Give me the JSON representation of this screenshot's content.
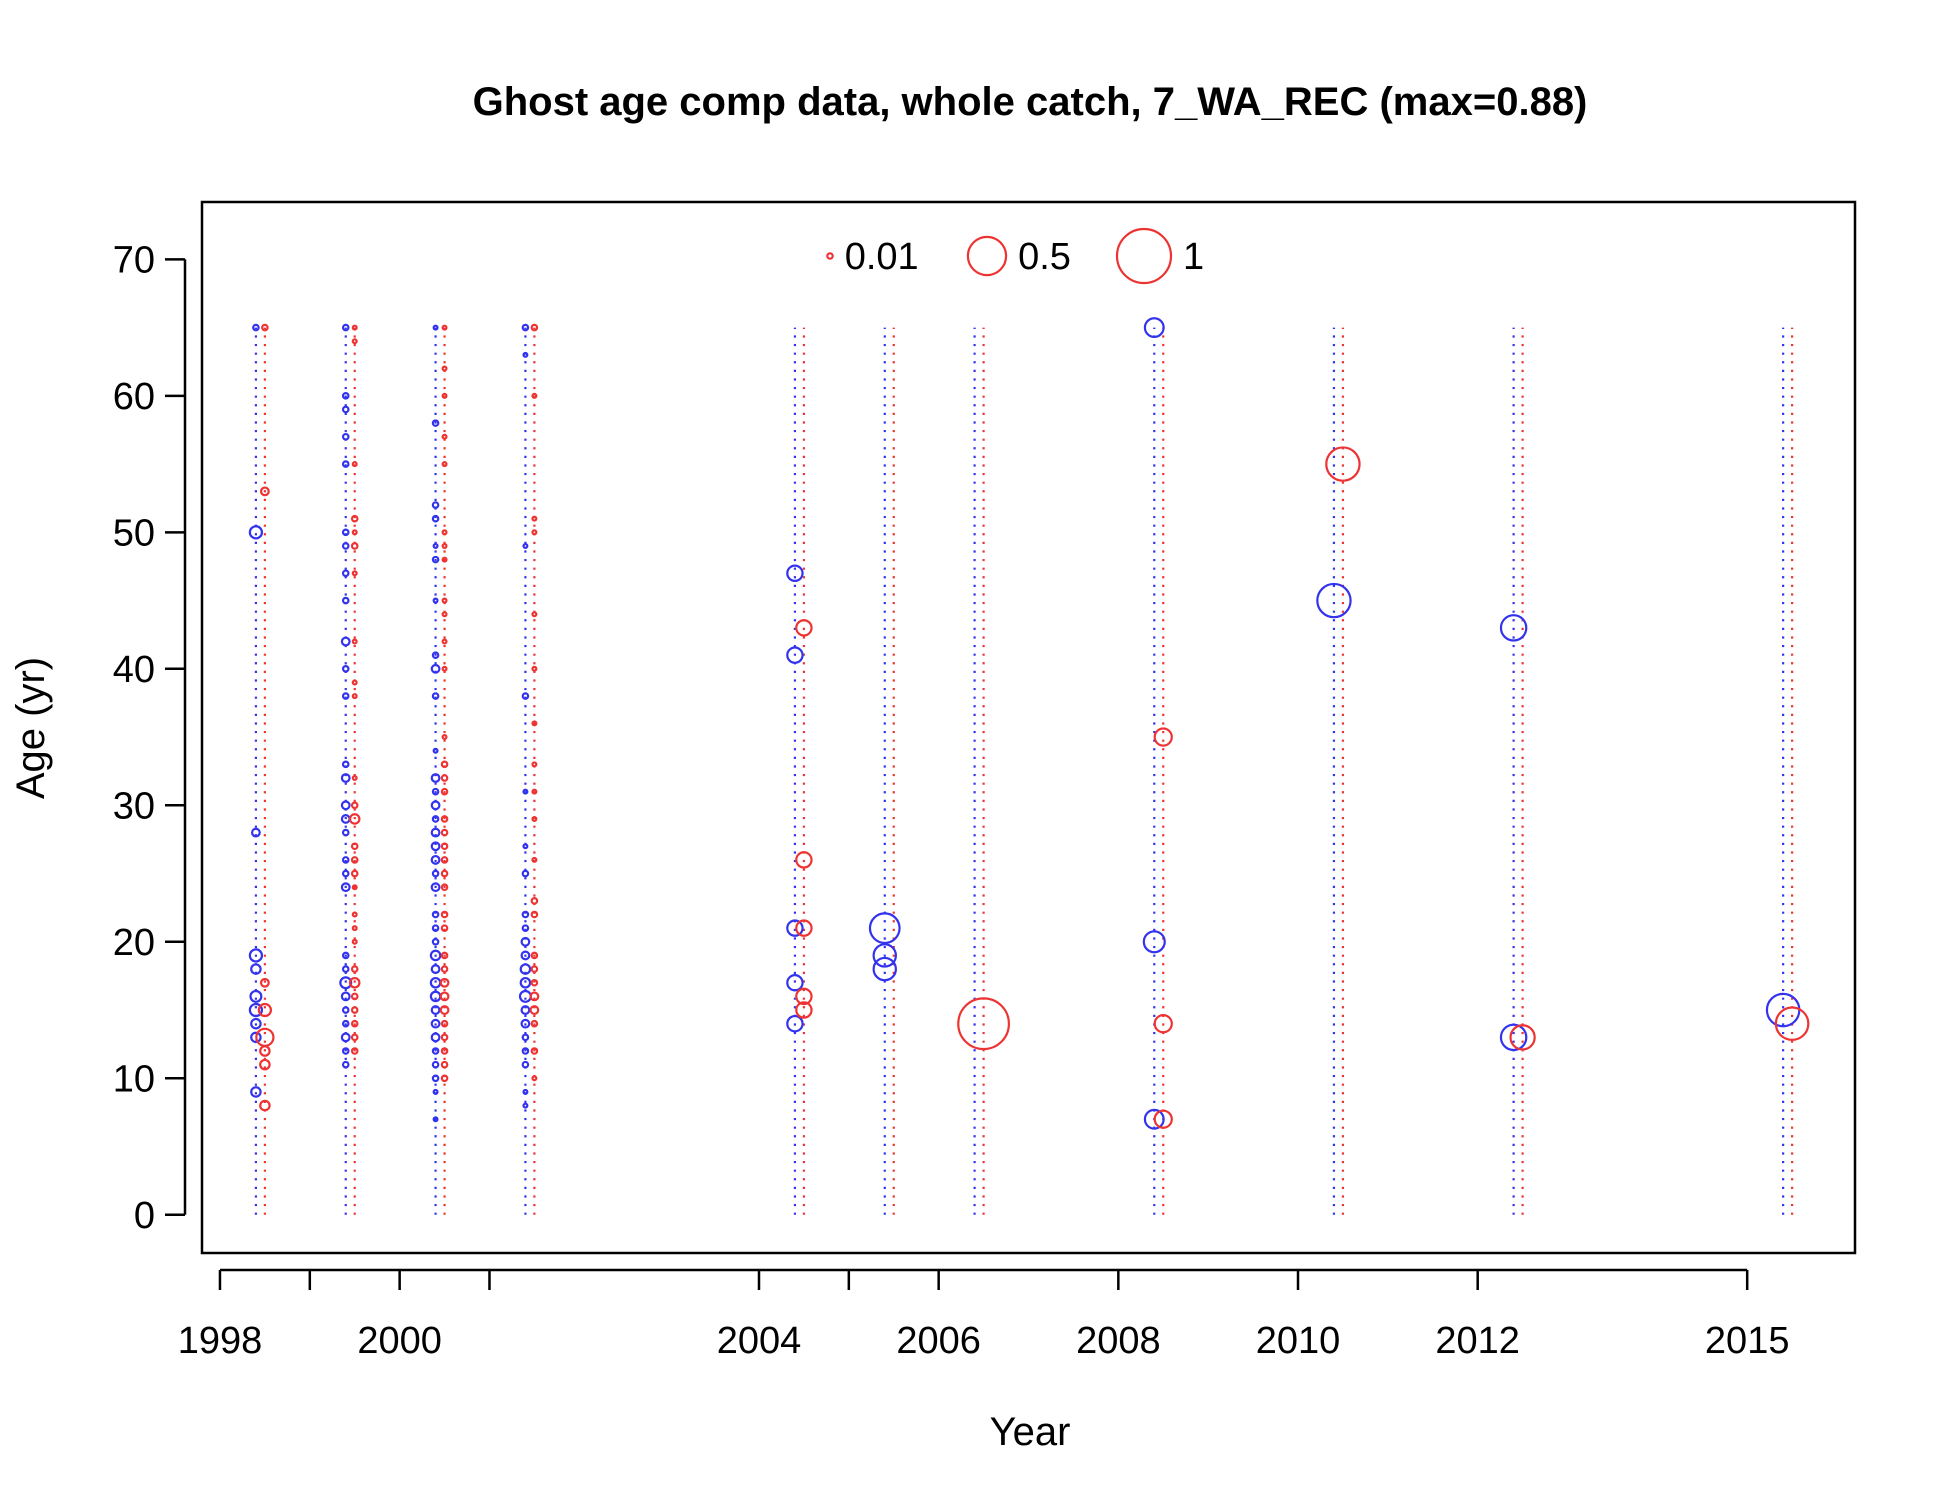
{
  "chart_data": {
    "type": "scatter",
    "title": "Ghost age comp data, whole catch, 7_WA_REC (max=0.88)",
    "xlabel": "Year",
    "ylabel": "Age (yr)",
    "xlim": [
      1997.8,
      2016.2
    ],
    "ylim": [
      -2.8,
      74.2
    ],
    "x_ticks": [
      1998,
      1999,
      2000,
      2001,
      2004,
      2005,
      2006,
      2008,
      2010,
      2012,
      2015
    ],
    "x_tick_labels": [
      "1998",
      "",
      "2000",
      "",
      "2004",
      "",
      "2006",
      "2008",
      "2010",
      "2012",
      "2015"
    ],
    "y_ticks": [
      0,
      10,
      20,
      30,
      40,
      50,
      60,
      70
    ],
    "y_tick_labels": [
      "0",
      "10",
      "20",
      "30",
      "40",
      "50",
      "60",
      "70"
    ],
    "grid": false,
    "legend_position": "top-center",
    "legend": [
      {
        "label": "0.01",
        "value": 0.01
      },
      {
        "label": "0.5",
        "value": 0.5
      },
      {
        "label": "1",
        "value": 1
      }
    ],
    "colors": {
      "female": "#3333ee",
      "male": "#ee3333"
    },
    "years": [
      1998.45,
      1999.45,
      2000.45,
      2001.45,
      2004.45,
      2005.45,
      2006.45,
      2008.45,
      2010.45,
      2012.45,
      2015.45
    ],
    "age_range": [
      0,
      65
    ],
    "series": [
      {
        "color": "#3333ee",
        "offset": -0.05,
        "points": [
          [
            1998.45,
            65,
            0.01
          ],
          [
            1998.45,
            50,
            0.05
          ],
          [
            1998.45,
            28,
            0.02
          ],
          [
            1998.45,
            19,
            0.05
          ],
          [
            1998.45,
            18,
            0.03
          ],
          [
            1998.45,
            16,
            0.04
          ],
          [
            1998.45,
            15,
            0.05
          ],
          [
            1998.45,
            14,
            0.03
          ],
          [
            1998.45,
            13,
            0.03
          ],
          [
            1998.45,
            9,
            0.03
          ],
          [
            1999.45,
            65,
            0.01
          ],
          [
            1999.45,
            60,
            0.01
          ],
          [
            1999.45,
            59,
            0.01
          ],
          [
            1999.45,
            57,
            0.01
          ],
          [
            1999.45,
            55,
            0.01
          ],
          [
            1999.45,
            50,
            0.01
          ],
          [
            1999.45,
            49,
            0.01
          ],
          [
            1999.45,
            47,
            0.01
          ],
          [
            1999.45,
            45,
            0.01
          ],
          [
            1999.45,
            42,
            0.02
          ],
          [
            1999.45,
            40,
            0.01
          ],
          [
            1999.45,
            38,
            0.01
          ],
          [
            1999.45,
            33,
            0.01
          ],
          [
            1999.45,
            32,
            0.02
          ],
          [
            1999.45,
            30,
            0.02
          ],
          [
            1999.45,
            29,
            0.02
          ],
          [
            1999.45,
            28,
            0.01
          ],
          [
            1999.45,
            26,
            0.01
          ],
          [
            1999.45,
            25,
            0.01
          ],
          [
            1999.45,
            24,
            0.02
          ],
          [
            1999.45,
            19,
            0.01
          ],
          [
            1999.45,
            18,
            0.01
          ],
          [
            1999.45,
            17,
            0.04
          ],
          [
            1999.45,
            16,
            0.02
          ],
          [
            1999.45,
            15,
            0.01
          ],
          [
            1999.45,
            14,
            0.01
          ],
          [
            1999.45,
            13,
            0.02
          ],
          [
            1999.45,
            12,
            0.01
          ],
          [
            1999.45,
            11,
            0.01
          ],
          [
            2000.45,
            65,
            0.005
          ],
          [
            2000.45,
            58,
            0.01
          ],
          [
            2000.45,
            52,
            0.01
          ],
          [
            2000.45,
            51,
            0.01
          ],
          [
            2000.45,
            49,
            0.005
          ],
          [
            2000.45,
            48,
            0.01
          ],
          [
            2000.45,
            45,
            0.005
          ],
          [
            2000.45,
            41,
            0.01
          ],
          [
            2000.45,
            40,
            0.02
          ],
          [
            2000.45,
            38,
            0.01
          ],
          [
            2000.45,
            34,
            0.005
          ],
          [
            2000.45,
            32,
            0.02
          ],
          [
            2000.45,
            31,
            0.01
          ],
          [
            2000.45,
            30,
            0.02
          ],
          [
            2000.45,
            29,
            0.01
          ],
          [
            2000.45,
            28,
            0.02
          ],
          [
            2000.45,
            27,
            0.02
          ],
          [
            2000.45,
            26,
            0.02
          ],
          [
            2000.45,
            25,
            0.01
          ],
          [
            2000.45,
            24,
            0.02
          ],
          [
            2000.45,
            22,
            0.01
          ],
          [
            2000.45,
            21,
            0.01
          ],
          [
            2000.45,
            20,
            0.01
          ],
          [
            2000.45,
            19,
            0.03
          ],
          [
            2000.45,
            18,
            0.02
          ],
          [
            2000.45,
            17,
            0.03
          ],
          [
            2000.45,
            16,
            0.03
          ],
          [
            2000.45,
            15,
            0.02
          ],
          [
            2000.45,
            14,
            0.02
          ],
          [
            2000.45,
            13,
            0.02
          ],
          [
            2000.45,
            12,
            0.01
          ],
          [
            2000.45,
            11,
            0.01
          ],
          [
            2000.45,
            10,
            0.01
          ],
          [
            2000.45,
            9,
            0.005
          ],
          [
            2000.45,
            7,
            0.005
          ],
          [
            2001.45,
            65,
            0.01
          ],
          [
            2001.45,
            63,
            0.005
          ],
          [
            2001.45,
            49,
            0.005
          ],
          [
            2001.45,
            38,
            0.01
          ],
          [
            2001.45,
            31,
            0.005
          ],
          [
            2001.45,
            27,
            0.005
          ],
          [
            2001.45,
            25,
            0.01
          ],
          [
            2001.45,
            22,
            0.01
          ],
          [
            2001.45,
            21,
            0.01
          ],
          [
            2001.45,
            20,
            0.02
          ],
          [
            2001.45,
            19,
            0.02
          ],
          [
            2001.45,
            18,
            0.03
          ],
          [
            2001.45,
            17,
            0.03
          ],
          [
            2001.45,
            16,
            0.04
          ],
          [
            2001.45,
            15,
            0.02
          ],
          [
            2001.45,
            14,
            0.02
          ],
          [
            2001.45,
            13,
            0.01
          ],
          [
            2001.45,
            12,
            0.01
          ],
          [
            2001.45,
            11,
            0.01
          ],
          [
            2001.45,
            9,
            0.005
          ],
          [
            2001.45,
            8,
            0.005
          ],
          [
            2004.45,
            47,
            0.08
          ],
          [
            2004.45,
            41,
            0.08
          ],
          [
            2004.45,
            21,
            0.08
          ],
          [
            2004.45,
            17,
            0.08
          ],
          [
            2004.45,
            14,
            0.08
          ],
          [
            2005.45,
            21,
            0.3
          ],
          [
            2005.45,
            19,
            0.17
          ],
          [
            2005.45,
            18,
            0.17
          ],
          [
            2008.45,
            65,
            0.12
          ],
          [
            2008.45,
            20,
            0.15
          ],
          [
            2008.45,
            7,
            0.12
          ],
          [
            2010.45,
            45,
            0.38
          ],
          [
            2012.45,
            43,
            0.22
          ],
          [
            2012.45,
            13,
            0.22
          ],
          [
            2015.45,
            15,
            0.36
          ]
        ]
      },
      {
        "color": "#ee3333",
        "offset": 0.05,
        "points": [
          [
            1998.45,
            65,
            0.01
          ],
          [
            1998.45,
            53,
            0.02
          ],
          [
            1998.45,
            17,
            0.02
          ],
          [
            1998.45,
            15,
            0.05
          ],
          [
            1998.45,
            13,
            0.1
          ],
          [
            1998.45,
            12,
            0.03
          ],
          [
            1998.45,
            11,
            0.03
          ],
          [
            1998.45,
            8,
            0.03
          ],
          [
            1999.45,
            65,
            0.005
          ],
          [
            1999.45,
            64,
            0.005
          ],
          [
            1999.45,
            55,
            0.005
          ],
          [
            1999.45,
            51,
            0.01
          ],
          [
            1999.45,
            50,
            0.005
          ],
          [
            1999.45,
            49,
            0.01
          ],
          [
            1999.45,
            47,
            0.005
          ],
          [
            1999.45,
            42,
            0.005
          ],
          [
            1999.45,
            39,
            0.005
          ],
          [
            1999.45,
            38,
            0.005
          ],
          [
            1999.45,
            32,
            0.005
          ],
          [
            1999.45,
            30,
            0.01
          ],
          [
            1999.45,
            29,
            0.03
          ],
          [
            1999.45,
            27,
            0.01
          ],
          [
            1999.45,
            26,
            0.01
          ],
          [
            1999.45,
            25,
            0.01
          ],
          [
            1999.45,
            24,
            0.005
          ],
          [
            1999.45,
            22,
            0.005
          ],
          [
            1999.45,
            21,
            0.005
          ],
          [
            1999.45,
            20,
            0.005
          ],
          [
            1999.45,
            18,
            0.01
          ],
          [
            1999.45,
            17,
            0.03
          ],
          [
            1999.45,
            16,
            0.01
          ],
          [
            1999.45,
            15,
            0.01
          ],
          [
            1999.45,
            14,
            0.01
          ],
          [
            1999.45,
            13,
            0.01
          ],
          [
            1999.45,
            12,
            0.01
          ],
          [
            2000.45,
            65,
            0.005
          ],
          [
            2000.45,
            62,
            0.005
          ],
          [
            2000.45,
            60,
            0.005
          ],
          [
            2000.45,
            57,
            0.005
          ],
          [
            2000.45,
            55,
            0.005
          ],
          [
            2000.45,
            50,
            0.005
          ],
          [
            2000.45,
            49,
            0.005
          ],
          [
            2000.45,
            48,
            0.005
          ],
          [
            2000.45,
            45,
            0.005
          ],
          [
            2000.45,
            44,
            0.005
          ],
          [
            2000.45,
            42,
            0.005
          ],
          [
            2000.45,
            40,
            0.005
          ],
          [
            2000.45,
            35,
            0.005
          ],
          [
            2000.45,
            33,
            0.01
          ],
          [
            2000.45,
            32,
            0.01
          ],
          [
            2000.45,
            31,
            0.01
          ],
          [
            2000.45,
            29,
            0.01
          ],
          [
            2000.45,
            28,
            0.01
          ],
          [
            2000.45,
            27,
            0.01
          ],
          [
            2000.45,
            26,
            0.01
          ],
          [
            2000.45,
            25,
            0.01
          ],
          [
            2000.45,
            24,
            0.01
          ],
          [
            2000.45,
            22,
            0.01
          ],
          [
            2000.45,
            21,
            0.01
          ],
          [
            2000.45,
            19,
            0.01
          ],
          [
            2000.45,
            18,
            0.01
          ],
          [
            2000.45,
            17,
            0.02
          ],
          [
            2000.45,
            16,
            0.02
          ],
          [
            2000.45,
            15,
            0.02
          ],
          [
            2000.45,
            14,
            0.01
          ],
          [
            2000.45,
            13,
            0.01
          ],
          [
            2000.45,
            12,
            0.01
          ],
          [
            2000.45,
            11,
            0.01
          ],
          [
            2000.45,
            10,
            0.01
          ],
          [
            2001.45,
            65,
            0.01
          ],
          [
            2001.45,
            60,
            0.005
          ],
          [
            2001.45,
            51,
            0.005
          ],
          [
            2001.45,
            50,
            0.005
          ],
          [
            2001.45,
            44,
            0.005
          ],
          [
            2001.45,
            40,
            0.005
          ],
          [
            2001.45,
            36,
            0.005
          ],
          [
            2001.45,
            33,
            0.005
          ],
          [
            2001.45,
            31,
            0.005
          ],
          [
            2001.45,
            29,
            0.005
          ],
          [
            2001.45,
            26,
            0.005
          ],
          [
            2001.45,
            23,
            0.01
          ],
          [
            2001.45,
            22,
            0.01
          ],
          [
            2001.45,
            19,
            0.01
          ],
          [
            2001.45,
            18,
            0.01
          ],
          [
            2001.45,
            17,
            0.01
          ],
          [
            2001.45,
            16,
            0.02
          ],
          [
            2001.45,
            15,
            0.02
          ],
          [
            2001.45,
            14,
            0.01
          ],
          [
            2001.45,
            12,
            0.01
          ],
          [
            2001.45,
            10,
            0.005
          ],
          [
            2004.45,
            43,
            0.08
          ],
          [
            2004.45,
            26,
            0.08
          ],
          [
            2004.45,
            21,
            0.08
          ],
          [
            2004.45,
            16,
            0.08
          ],
          [
            2004.45,
            15,
            0.08
          ],
          [
            2006.45,
            14,
            0.88
          ],
          [
            2008.45,
            35,
            0.1
          ],
          [
            2008.45,
            14,
            0.1
          ],
          [
            2008.45,
            7,
            0.1
          ],
          [
            2010.45,
            55,
            0.38
          ],
          [
            2012.45,
            13,
            0.2
          ],
          [
            2015.45,
            14,
            0.36
          ]
        ]
      }
    ]
  }
}
